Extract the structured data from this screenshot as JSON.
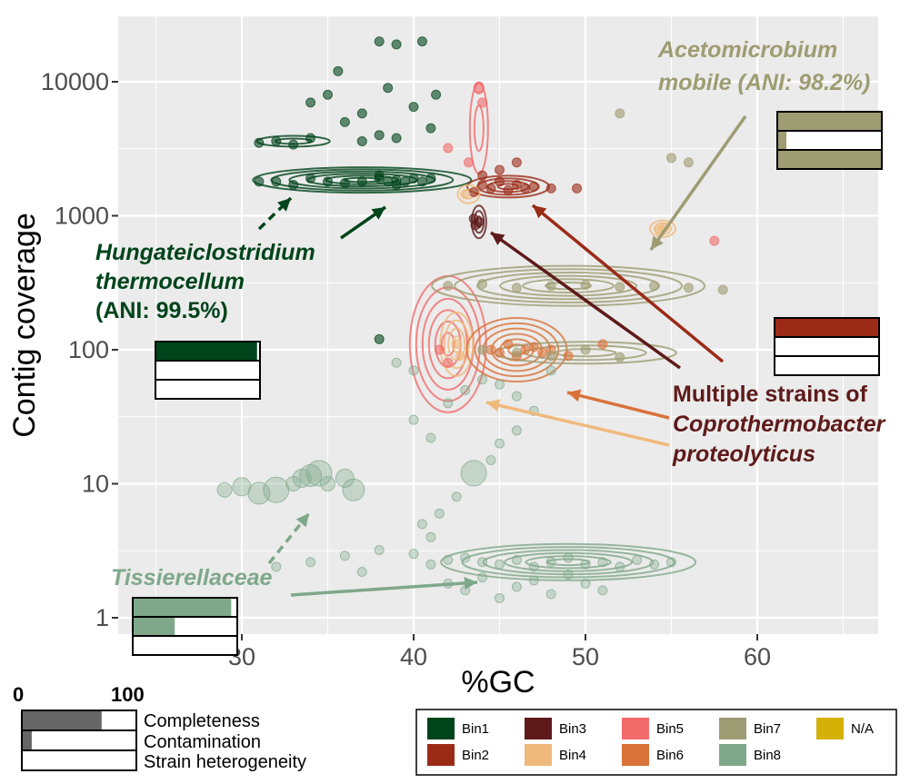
{
  "chart_data": {
    "type": "scatter",
    "title": "",
    "xlabel": "%GC",
    "ylabel": "Contig coverage",
    "xlim": [
      24,
      67
    ],
    "ylim": [
      0.8,
      30000
    ],
    "y_scale": "log",
    "x_ticks": [
      "30",
      "40",
      "50",
      "60"
    ],
    "x_tick_values": [
      30,
      40,
      50,
      60
    ],
    "y_ticks": [
      "1",
      "10",
      "100",
      "1000",
      "10000"
    ],
    "y_tick_values": [
      1,
      10,
      100,
      1000,
      10000
    ],
    "grid": true,
    "legend_position": "bottom-right",
    "series": [
      {
        "name": "Bin1",
        "color": "#00441b",
        "points": [
          [
            31,
            1800
          ],
          [
            32,
            1800
          ],
          [
            33,
            1700
          ],
          [
            34,
            1900
          ],
          [
            35,
            1800
          ],
          [
            36,
            1750
          ],
          [
            37,
            1800
          ],
          [
            38,
            1900
          ],
          [
            38.5,
            1800
          ],
          [
            39,
            1850
          ],
          [
            39.5,
            1800
          ],
          [
            40,
            1900
          ],
          [
            38,
            2000
          ],
          [
            39,
            1700
          ],
          [
            40.5,
            1800
          ],
          [
            41,
            1900
          ],
          [
            31,
            3500
          ],
          [
            32,
            3600
          ],
          [
            33,
            3400
          ],
          [
            34,
            3800
          ],
          [
            36,
            5000
          ],
          [
            37,
            3600
          ],
          [
            38,
            4000
          ],
          [
            38,
            20000
          ],
          [
            39,
            19000
          ],
          [
            40.5,
            20000
          ],
          [
            35.6,
            12000
          ],
          [
            37,
            5800
          ],
          [
            38.5,
            9000
          ],
          [
            41.3,
            8000
          ],
          [
            34,
            7000
          ],
          [
            35,
            8000
          ],
          [
            40,
            6500
          ],
          [
            41,
            4500
          ],
          [
            30.5,
            90
          ],
          [
            38,
            120
          ],
          [
            39,
            3800
          ]
        ]
      },
      {
        "name": "Bin2",
        "color": "#9b2b17",
        "points": [
          [
            43.5,
            1500
          ],
          [
            44,
            1700
          ],
          [
            44.5,
            1600
          ],
          [
            45,
            1800
          ],
          [
            45.5,
            1550
          ],
          [
            46,
            1700
          ],
          [
            46.5,
            1600
          ],
          [
            47,
            1650
          ],
          [
            44,
            2000
          ],
          [
            45,
            2200
          ],
          [
            46,
            2500
          ],
          [
            48,
            1600
          ],
          [
            49.5,
            1600
          ]
        ]
      },
      {
        "name": "Bin3",
        "color": "#5e1a1a",
        "points": [
          [
            43.6,
            850
          ],
          [
            43.8,
            900
          ],
          [
            43.5,
            950
          ]
        ]
      },
      {
        "name": "Bin4",
        "color": "#f0b97c",
        "points": [
          [
            43,
            1450
          ],
          [
            54.3,
            780
          ],
          [
            54.6,
            820
          ],
          [
            42.5,
            110
          ],
          [
            42.7,
            90
          ]
        ]
      },
      {
        "name": "Bin5",
        "color": "#f26a6a",
        "points": [
          [
            43.8,
            9000
          ],
          [
            44,
            7000
          ],
          [
            42,
            3200
          ],
          [
            43.2,
            2500
          ],
          [
            57.5,
            650
          ],
          [
            41.5,
            100
          ],
          [
            42,
            80
          ]
        ]
      },
      {
        "name": "Bin6",
        "color": "#d9733a",
        "points": [
          [
            44.5,
            100
          ],
          [
            45,
            95
          ],
          [
            45.5,
            110
          ],
          [
            46,
            90
          ],
          [
            46.5,
            100
          ],
          [
            47,
            105
          ],
          [
            47.5,
            95
          ],
          [
            48,
            100
          ],
          [
            49,
            90
          ],
          [
            51,
            110
          ]
        ]
      },
      {
        "name": "Bin7",
        "color": "#9e9c72",
        "points": [
          [
            42,
            300
          ],
          [
            44,
            310
          ],
          [
            46,
            290
          ],
          [
            48,
            300
          ],
          [
            50,
            305
          ],
          [
            52,
            295
          ],
          [
            54,
            300
          ],
          [
            56,
            290
          ],
          [
            58,
            280
          ],
          [
            44,
            100
          ],
          [
            46,
            95
          ],
          [
            48,
            90
          ],
          [
            50,
            100
          ],
          [
            52,
            88
          ],
          [
            55,
            2700
          ],
          [
            56,
            2500
          ],
          [
            52,
            5800
          ]
        ]
      },
      {
        "name": "Bin8",
        "color": "#7fa88a",
        "points": [
          [
            29,
            9
          ],
          [
            30,
            9.5
          ],
          [
            31,
            8.5
          ],
          [
            32,
            9
          ],
          [
            33,
            10
          ],
          [
            33.5,
            11
          ],
          [
            34,
            11.5
          ],
          [
            34.5,
            12
          ],
          [
            35,
            10
          ],
          [
            36,
            11
          ],
          [
            36.5,
            9
          ],
          [
            40,
            3
          ],
          [
            41,
            2.5
          ],
          [
            42,
            2.7
          ],
          [
            43,
            2.8
          ],
          [
            44,
            2.6
          ],
          [
            45,
            2.5
          ],
          [
            46,
            2.7
          ],
          [
            47,
            2.4
          ],
          [
            48,
            2.6
          ],
          [
            49,
            2.8
          ],
          [
            50,
            2.5
          ],
          [
            51,
            2.6
          ],
          [
            52,
            2.4
          ],
          [
            53,
            2.7
          ],
          [
            54,
            2.5
          ],
          [
            55,
            2.6
          ],
          [
            38,
            3.2
          ],
          [
            37,
            2.2
          ],
          [
            36,
            2.9
          ],
          [
            34,
            2.6
          ],
          [
            32,
            2.4
          ],
          [
            40.5,
            5
          ],
          [
            41.5,
            6
          ],
          [
            42.5,
            8
          ],
          [
            43.5,
            12
          ],
          [
            44.5,
            15
          ],
          [
            45,
            20
          ],
          [
            46,
            25
          ],
          [
            40,
            30
          ],
          [
            41,
            22
          ],
          [
            42,
            40
          ],
          [
            43,
            50
          ],
          [
            44,
            60
          ],
          [
            45,
            55
          ],
          [
            46,
            45
          ],
          [
            47,
            35
          ],
          [
            48,
            70
          ],
          [
            39,
            80
          ],
          [
            40,
            70
          ],
          [
            41,
            4
          ],
          [
            42,
            1.8
          ],
          [
            43,
            1.6
          ],
          [
            44,
            2
          ],
          [
            45,
            1.4
          ],
          [
            46,
            1.7
          ],
          [
            47,
            1.9
          ],
          [
            48,
            1.5
          ],
          [
            49,
            2.1
          ],
          [
            50,
            1.8
          ],
          [
            51,
            1.6
          ]
        ]
      },
      {
        "name": "N/A",
        "color": "#d4b106",
        "points": []
      }
    ],
    "annotations": [
      {
        "lines": [
          "Hungateiclostridium",
          "thermocellum",
          "(ANI: 99.5%)"
        ],
        "color": "#00441b",
        "italic_lines": [
          0,
          1
        ]
      },
      {
        "lines": [
          "Acetomicrobium",
          "mobile (ANI: 98.2%)"
        ],
        "color": "#9e9c72",
        "italic_lines": [
          0,
          1
        ]
      },
      {
        "lines": [
          "Multiple strains of",
          "Coprothermobacter",
          "proteolyticus"
        ],
        "color": "#5e1a1a",
        "italic_lines": [
          1,
          2
        ]
      },
      {
        "lines": [
          "Tissierellaceae"
        ],
        "color": "#7fa88a",
        "italic_lines": [
          0
        ]
      }
    ],
    "quality_bars": [
      {
        "label": "Hungateiclostridium thermocellum",
        "color": "#00441b",
        "completeness": 98,
        "contamination": 0,
        "strain_heterogeneity": 0
      },
      {
        "label": "Acetomicrobium mobile",
        "color": "#9e9c72",
        "completeness": 100,
        "contamination": 8,
        "strain_heterogeneity": 100
      },
      {
        "label": "Coprothermobacter proteolyticus",
        "color": "#9b2b17",
        "completeness": 100,
        "contamination": 0,
        "strain_heterogeneity": 0
      },
      {
        "label": "Tissierellaceae",
        "color": "#7fa88a",
        "completeness": 95,
        "contamination": 40,
        "strain_heterogeneity": 0
      }
    ]
  },
  "key": {
    "min_label": "0",
    "max_label": "100",
    "rows": [
      "Completeness",
      "Contamination",
      "Strain heterogeneity"
    ],
    "completeness_demo": 70,
    "contamination_demo": 8,
    "color": "#666666"
  }
}
